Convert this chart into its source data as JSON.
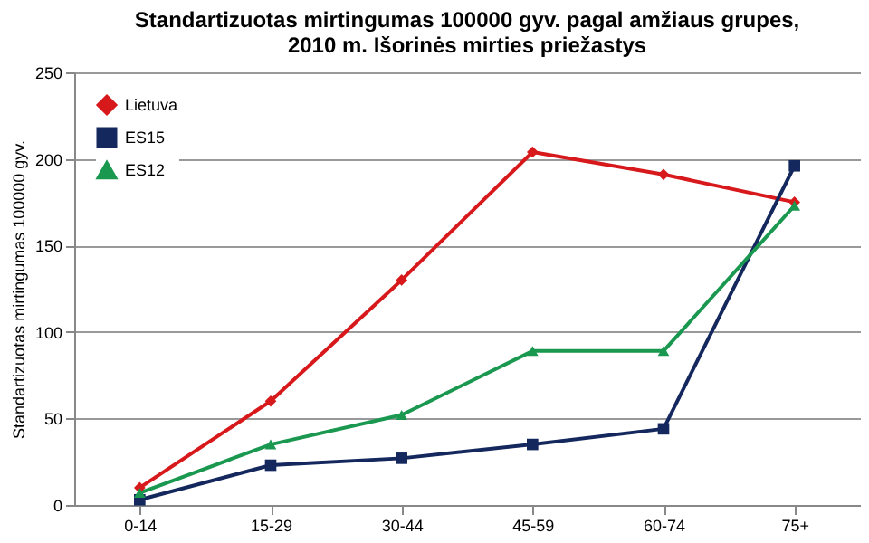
{
  "chart_data": {
    "type": "line",
    "title": "Standartizuotas mirtingumas 100000 gyv. pagal amžiaus grupes,\n2010 m. Išorinės mirties priežastys",
    "ylabel": "Standartizuotas mirtingumas 100000 gyv.",
    "categories": [
      "0-14",
      "15-29",
      "30-44",
      "45-59",
      "60-74",
      "75+"
    ],
    "series": [
      {
        "name": "Lietuva",
        "color": "#d7191c",
        "marker": "diamond",
        "values": [
          10,
          60,
          130,
          204,
          191,
          175
        ]
      },
      {
        "name": "ES15",
        "color": "#14285e",
        "marker": "square",
        "values": [
          3,
          23,
          27,
          35,
          44,
          196
        ]
      },
      {
        "name": "ES12",
        "color": "#1a9850",
        "marker": "triangle",
        "values": [
          7,
          35,
          52,
          89,
          89,
          173
        ]
      }
    ],
    "ylim": [
      0,
      250
    ],
    "yticks": [
      0,
      50,
      100,
      150,
      200,
      250
    ],
    "grid": "y",
    "legend": "top left",
    "line_style": "solid"
  }
}
